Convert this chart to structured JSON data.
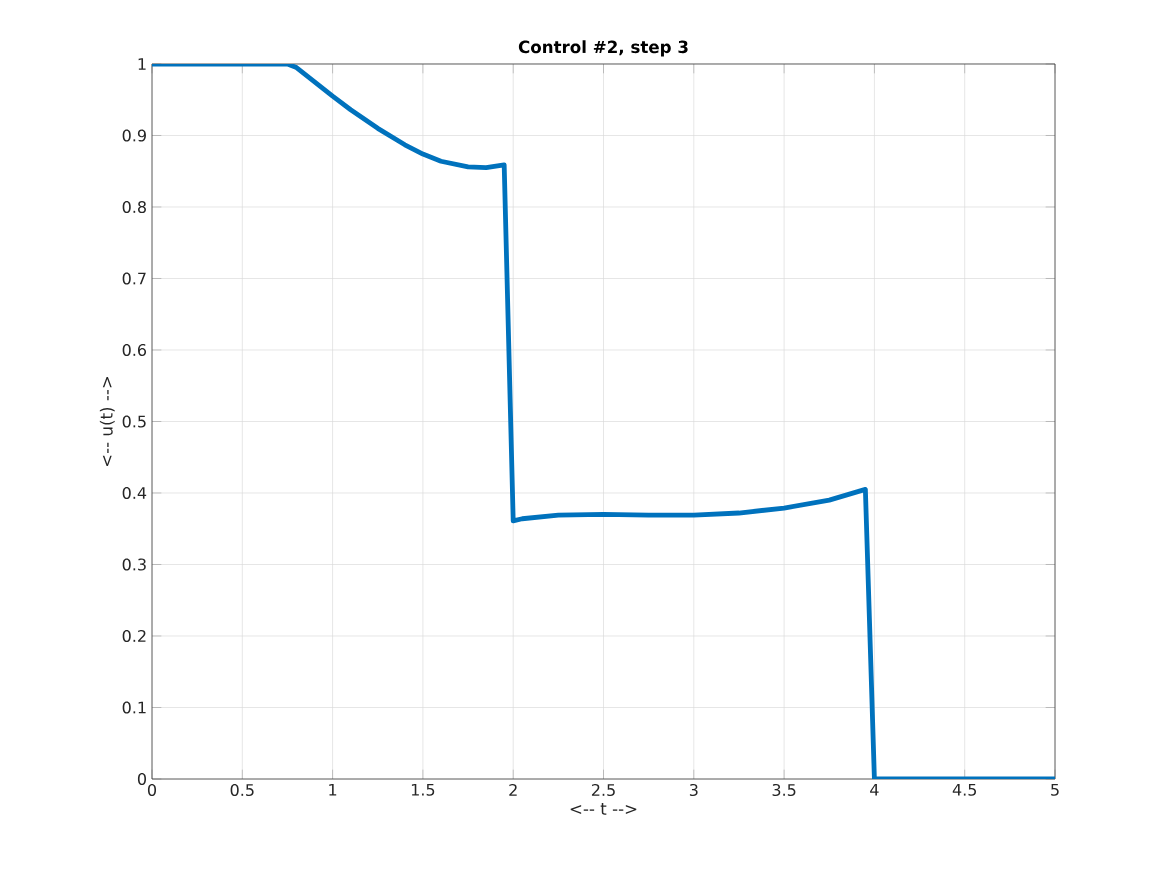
{
  "chart_data": {
    "type": "line",
    "title": "Control #2, step 3",
    "xlabel": "<-- t -->",
    "ylabel": "<-- u(t) -->",
    "xlim": [
      0,
      5
    ],
    "ylim": [
      0,
      1
    ],
    "xticks": [
      0,
      0.5,
      1,
      1.5,
      2,
      2.5,
      3,
      3.5,
      4,
      4.5,
      5
    ],
    "yticks": [
      0,
      0.1,
      0.2,
      0.3,
      0.4,
      0.5,
      0.6,
      0.7,
      0.8,
      0.9,
      1
    ],
    "grid": true,
    "marker": "none",
    "line_style": "solid",
    "series": [
      {
        "color": "#0072bd",
        "x": [
          0,
          0.5,
          0.75,
          0.8,
          0.9,
          1,
          1.1,
          1.25,
          1.4,
          1.5,
          1.6,
          1.75,
          1.85,
          1.95,
          2.0,
          2.05,
          2.25,
          2.5,
          2.75,
          3,
          3.25,
          3.5,
          3.75,
          3.95,
          4.0,
          4.5,
          5
        ],
        "values": [
          1,
          1,
          1,
          0.995,
          0.975,
          0.955,
          0.936,
          0.91,
          0.887,
          0.874,
          0.864,
          0.856,
          0.855,
          0.859,
          0.361,
          0.364,
          0.369,
          0.37,
          0.369,
          0.369,
          0.372,
          0.379,
          0.39,
          0.405,
          0,
          0,
          0
        ]
      }
    ]
  }
}
